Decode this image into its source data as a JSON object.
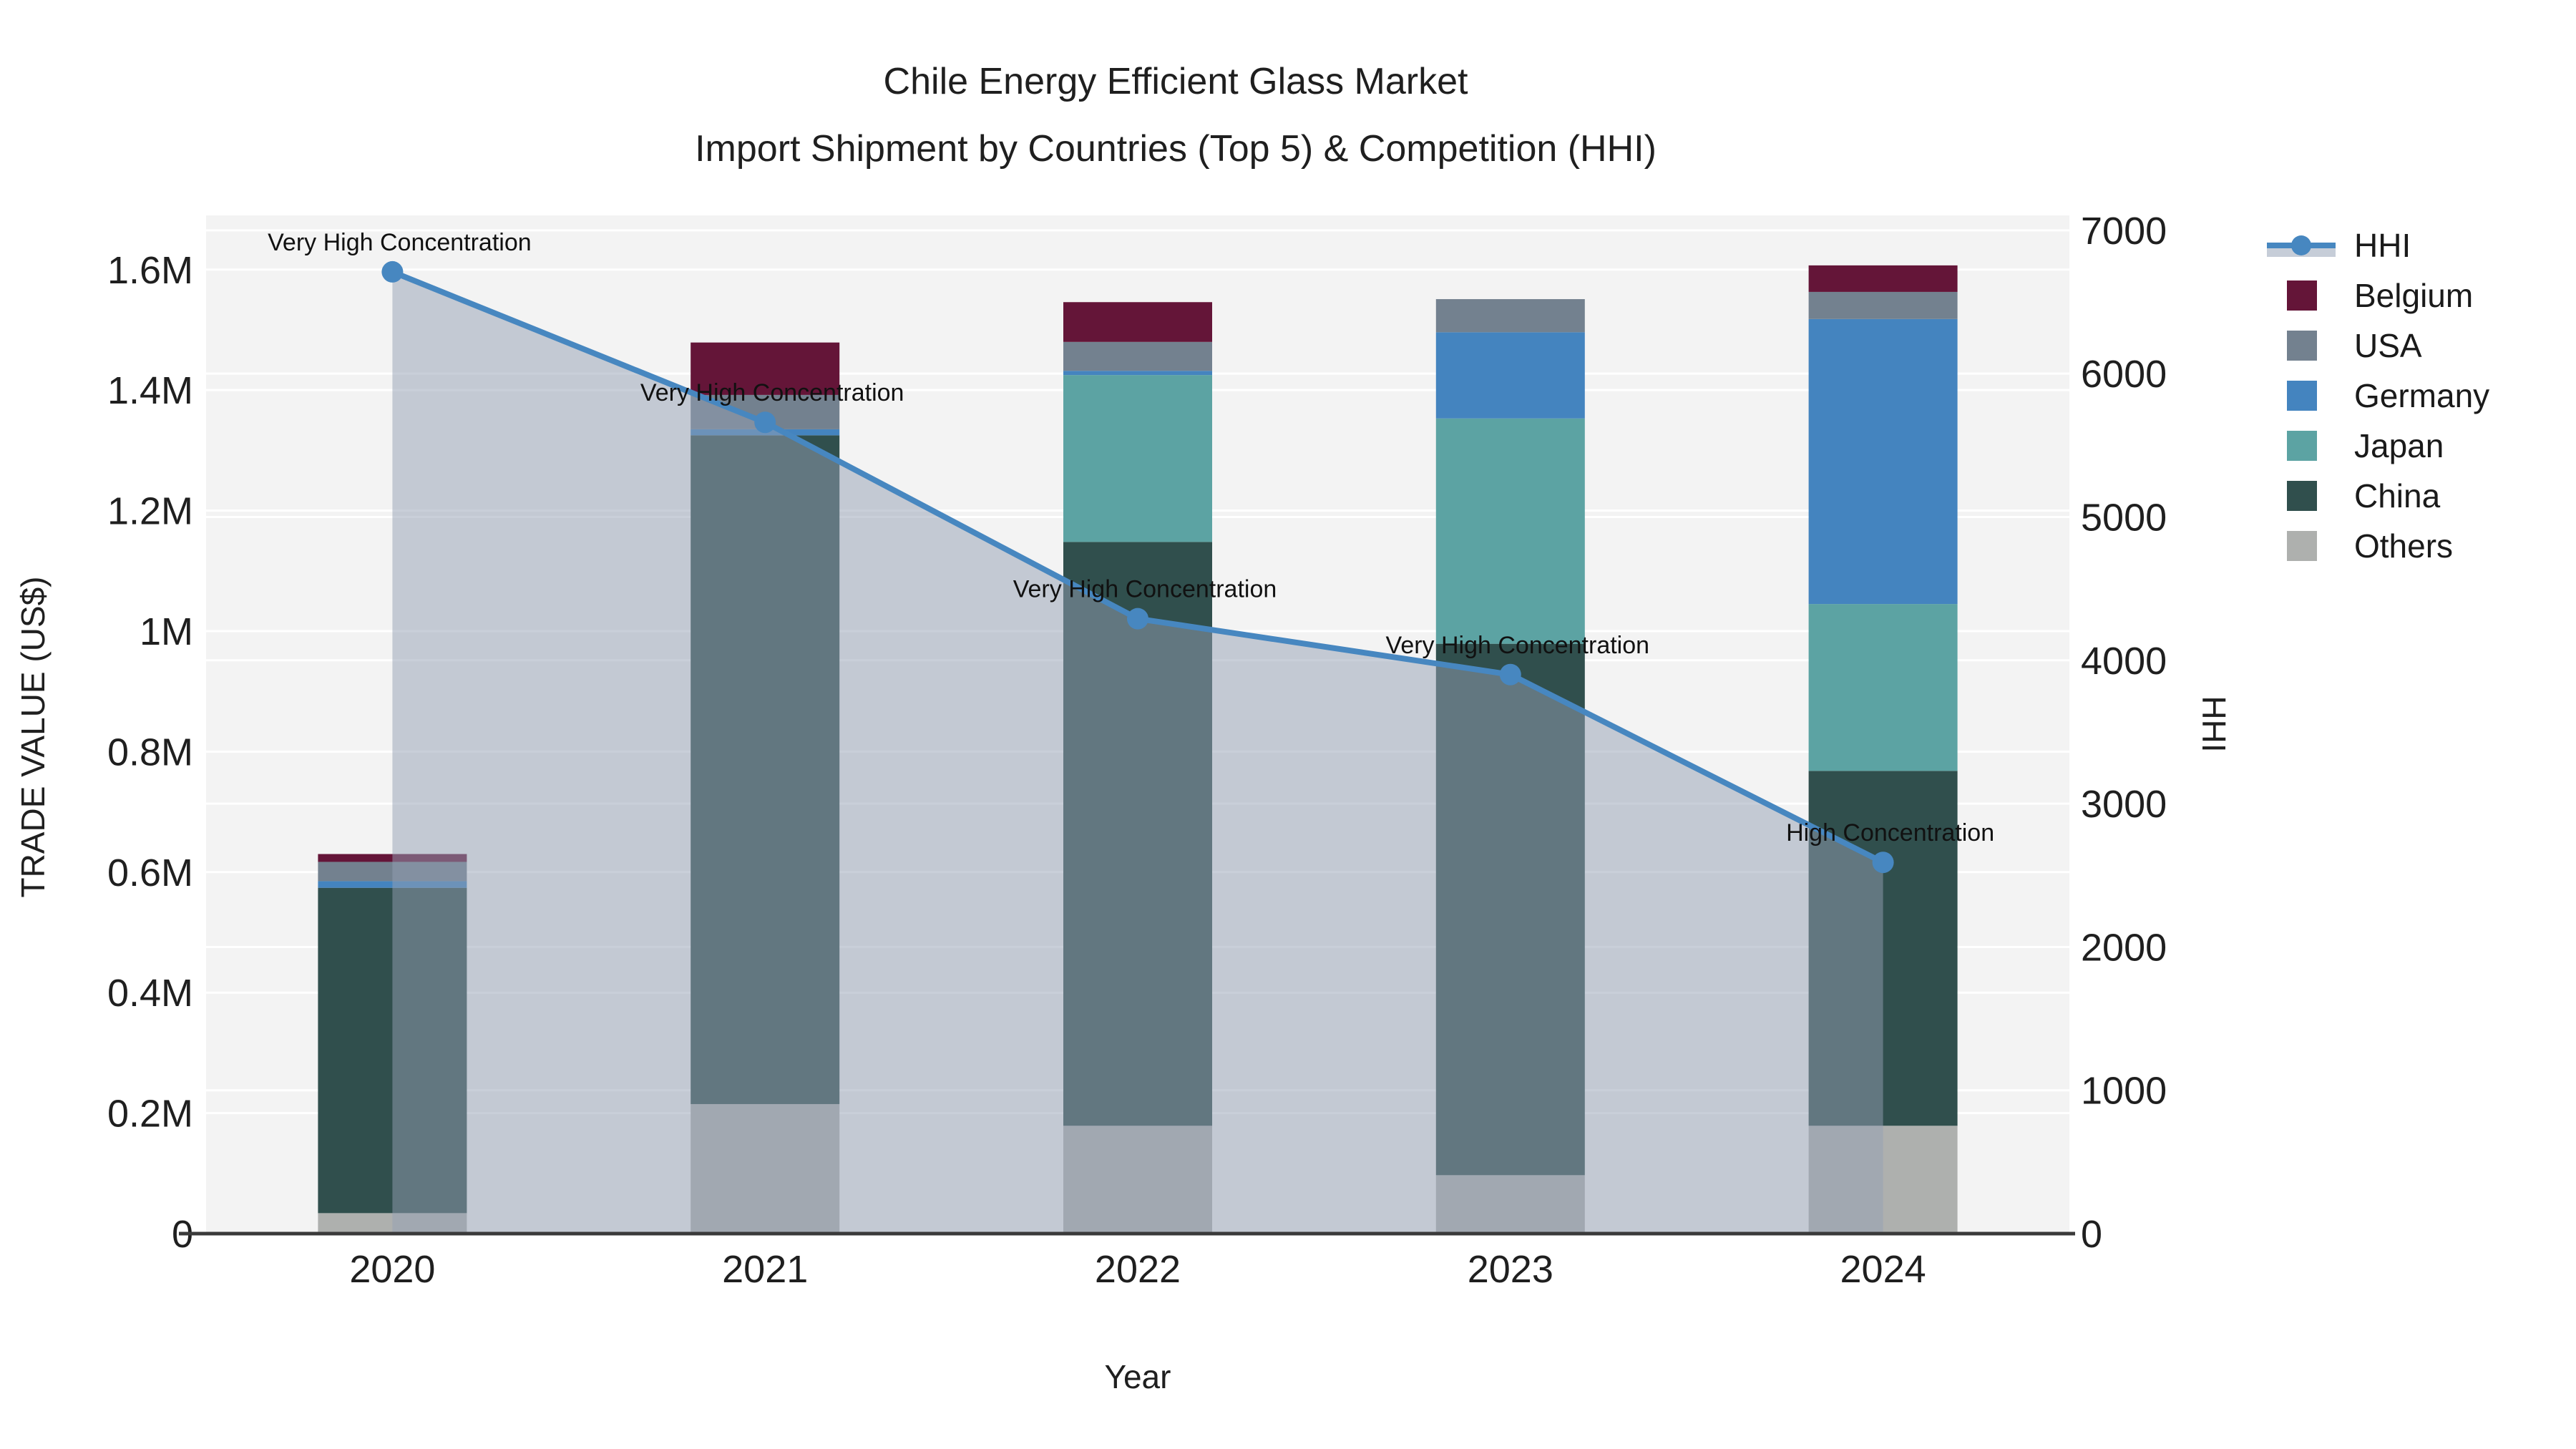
{
  "title": {
    "line1": "Chile Energy Efficient Glass Market",
    "line2": "Import Shipment by Countries (Top 5) & Competition (HHI)"
  },
  "axes": {
    "x_title": "Year",
    "y_left_title": "TRADE VALUE (US$)",
    "y_right_title": "HHI",
    "x_ticks": [
      "2020",
      "2021",
      "2022",
      "2023",
      "2024"
    ],
    "y_left_ticks": [
      {
        "value": 0,
        "label": "0"
      },
      {
        "value": 200000,
        "label": "0.2M"
      },
      {
        "value": 400000,
        "label": "0.4M"
      },
      {
        "value": 600000,
        "label": "0.6M"
      },
      {
        "value": 800000,
        "label": "0.8M"
      },
      {
        "value": 1000000,
        "label": "1M"
      },
      {
        "value": 1200000,
        "label": "1.2M"
      },
      {
        "value": 1400000,
        "label": "1.4M"
      },
      {
        "value": 1600000,
        "label": "1.6M"
      }
    ],
    "y_right_ticks": [
      {
        "value": 0,
        "label": "0"
      },
      {
        "value": 1000,
        "label": "1000"
      },
      {
        "value": 2000,
        "label": "2000"
      },
      {
        "value": 3000,
        "label": "3000"
      },
      {
        "value": 4000,
        "label": "4000"
      },
      {
        "value": 5000,
        "label": "5000"
      },
      {
        "value": 6000,
        "label": "6000"
      },
      {
        "value": 7000,
        "label": "7000"
      }
    ]
  },
  "colors": {
    "plot_background": "#f3f3f3",
    "gridline": "#ffffff",
    "axis_line": "#3a3a3a",
    "text": "#1f1f1f",
    "hhi_line": "#4787c0",
    "hhi_area": "rgba(147,159,179,0.5)",
    "belgium": "#641538",
    "usa": "#73818f",
    "germany": "#4484bf",
    "japan": "#5ca3a3",
    "china": "#304f4d",
    "others": "#aeb0ae"
  },
  "legend": {
    "order_top_to_bottom": [
      "HHI",
      "Belgium",
      "USA",
      "Germany",
      "Japan",
      "China",
      "Others"
    ]
  },
  "chart_data": {
    "type": "bar+line",
    "categories": [
      "2020",
      "2021",
      "2022",
      "2023",
      "2024"
    ],
    "bar_unit": "US$",
    "bar_series_bottom_to_top": [
      {
        "name": "Others",
        "color_key": "others",
        "values": [
          34000,
          215000,
          179000,
          97000,
          179000
        ]
      },
      {
        "name": "China",
        "color_key": "china",
        "values": [
          540000,
          1110000,
          969000,
          882000,
          589000
        ]
      },
      {
        "name": "Japan",
        "color_key": "japan",
        "values": [
          0,
          0,
          277000,
          374000,
          277000
        ]
      },
      {
        "name": "Germany",
        "color_key": "germany",
        "values": [
          11000,
          10000,
          7000,
          143000,
          473000
        ]
      },
      {
        "name": "USA",
        "color_key": "usa",
        "values": [
          32000,
          57000,
          48000,
          55000,
          45000
        ]
      },
      {
        "name": "Belgium",
        "color_key": "belgium",
        "values": [
          13000,
          87000,
          66000,
          0,
          44000
        ]
      }
    ],
    "bar_totals": [
      630000,
      1479000,
      1546000,
      1551000,
      1607000
    ],
    "line_series": {
      "name": "HHI",
      "values": [
        6710,
        5660,
        4290,
        3900,
        2590
      ],
      "area_under_line": true
    },
    "annotations": [
      {
        "x": "2020",
        "text": "Very High Concentration"
      },
      {
        "x": "2021",
        "text": "Very High Concentration"
      },
      {
        "x": "2022",
        "text": "Very High Concentration"
      },
      {
        "x": "2023",
        "text": "Very High Concentration"
      },
      {
        "x": "2024",
        "text": "High Concentration"
      }
    ],
    "xlabel": "Year",
    "ylabel_left": "TRADE VALUE (US$)",
    "ylabel_right": "HHI",
    "y_left_range": [
      0,
      1690000
    ],
    "y_right_range": [
      0,
      7104
    ],
    "grid": true,
    "legend_position": "right"
  }
}
